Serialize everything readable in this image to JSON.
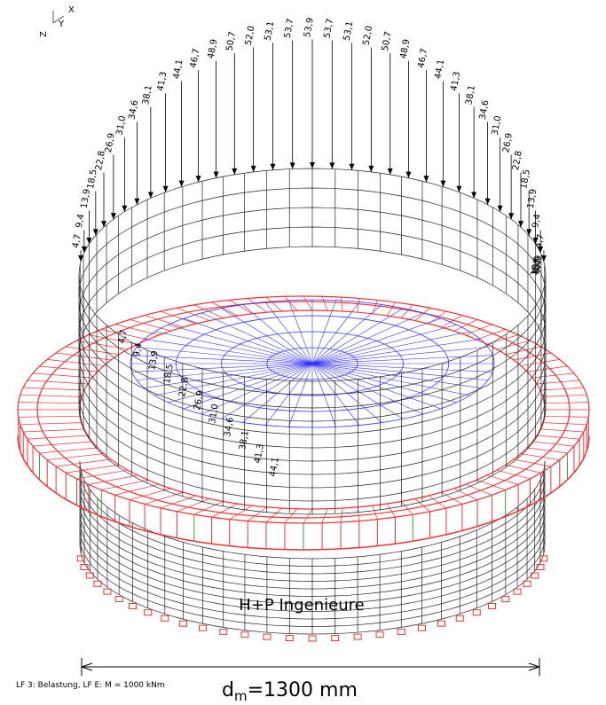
{
  "axes": {
    "x": "X",
    "y": "Y",
    "z": "Z"
  },
  "loads_back": [
    "4,7",
    "9,4",
    "13,9",
    "18,5",
    "22,8",
    "26,9",
    "31,0",
    "34,6",
    "38,1",
    "41,3",
    "44,1",
    "46,7",
    "48,9",
    "50,7",
    "52,0",
    "53,1",
    "53,7",
    "53,9",
    "53,7",
    "53,1",
    "52,0",
    "50,7",
    "48,9",
    "46,7",
    "44,1",
    "41,3",
    "38,1",
    "34,6",
    "31,0",
    "26,9",
    "22,8",
    "18,5",
    "13,9",
    "9,4",
    "4,7"
  ],
  "loads_right": [
    "4,7",
    "9,4",
    "13,9",
    "18,5"
  ],
  "loads_front": [
    "4,7",
    "9,4",
    "13,9",
    "18,5",
    "22,8",
    "26,9",
    "31,0",
    "34,6",
    "38,1",
    "41,3",
    "44,1"
  ],
  "watermark": "H+P Ingenieure",
  "caption": "LF 3: Belastung, LF E: M = 1000 kNm",
  "dimension": {
    "symbol": "d",
    "subscript": "m",
    "value": "=1300 mm"
  }
}
